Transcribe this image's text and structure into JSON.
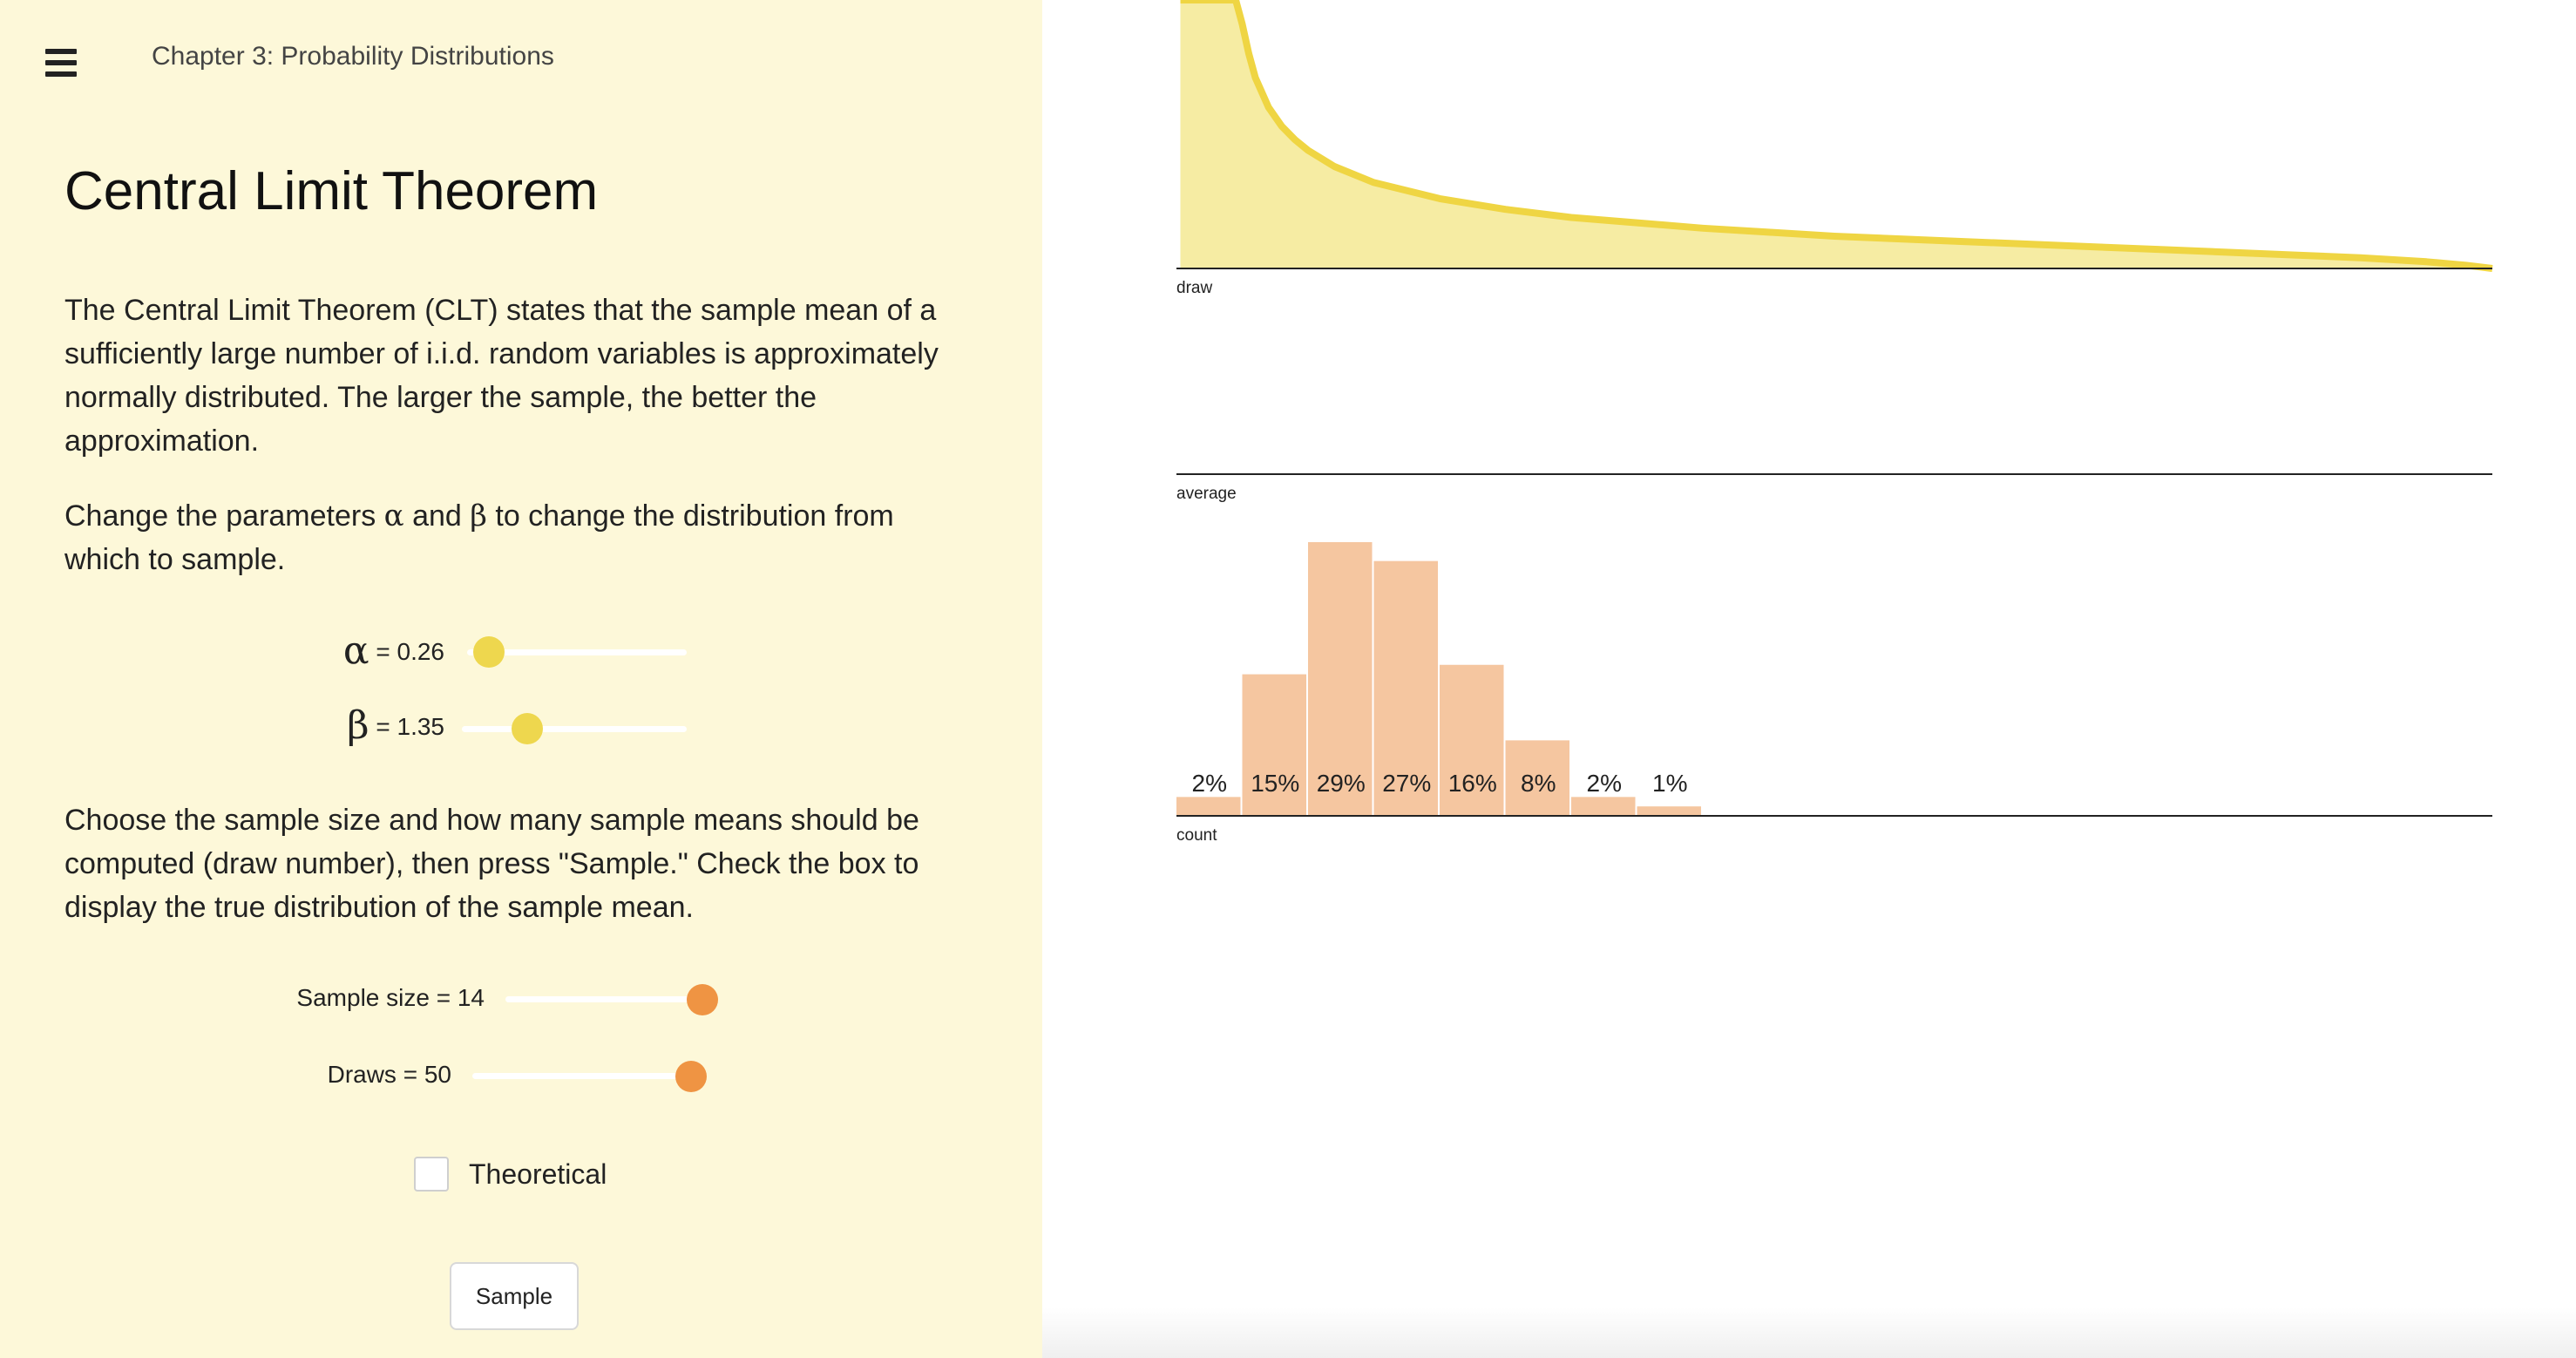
{
  "header": {
    "menu_icon": "hamburger-icon",
    "chapter_title": "Chapter 3: Probability Distributions"
  },
  "main": {
    "title": "Central Limit Theorem",
    "paragraph1": "The Central Limit Theorem (CLT) states that the sample mean of a sufficiently large number of i.i.d. random variables is approximately normally distributed. The larger the sample, the better the approximation.",
    "paragraph2": {
      "part1": "Change the parameters ",
      "alpha_symbol": "α",
      "part2": " and ",
      "beta_symbol": "β",
      "part3": " to change the distribution from which to sample."
    },
    "paragraph3": "Choose the sample size and how many sample means should be computed (draw number), then press \"Sample.\" Check the box to display the true distribution of the sample mean."
  },
  "controls": {
    "alpha": {
      "symbol": "α",
      "value_text": " = 0.26",
      "value": 0.26,
      "position_fraction": 0.1
    },
    "beta": {
      "symbol": "β",
      "value_text": " = 1.35",
      "value": 1.35,
      "position_fraction": 0.29
    },
    "sample_size": {
      "label": "Sample size = 14",
      "value": 14,
      "position_fraction": 0.94
    },
    "draws": {
      "label": "Draws = 50",
      "value": 50,
      "position_fraction": 0.98
    },
    "theoretical": {
      "label": "Theoretical",
      "checked": false
    },
    "sample_button": {
      "label": "Sample"
    }
  },
  "colors": {
    "sidebar_bg": "#fdf8d9",
    "density_fill": "#f6eca3",
    "density_line": "#efd543",
    "histogram_bar": "#f5c6a0",
    "slider_yellow": "#eed74e",
    "slider_orange": "#ef9443"
  },
  "chart_data": [
    {
      "type": "area",
      "description_label": "draw",
      "xlabel": "draw",
      "x_range": [
        0,
        1
      ],
      "x": [
        0.003,
        0.006,
        0.01,
        0.015,
        0.02,
        0.025,
        0.03,
        0.035,
        0.04,
        0.045,
        0.05,
        0.055,
        0.06,
        0.07,
        0.08,
        0.09,
        0.1,
        0.12,
        0.15,
        0.2,
        0.25,
        0.3,
        0.35,
        0.4,
        0.45,
        0.5,
        0.55,
        0.6,
        0.65,
        0.7,
        0.75,
        0.8,
        0.85,
        0.9,
        0.95,
        0.98,
        1.0
      ],
      "values": [
        1.0,
        1.0,
        1.0,
        1.0,
        1.0,
        1.0,
        1.0,
        1.0,
        1.0,
        1.0,
        0.91,
        0.8,
        0.71,
        0.6,
        0.53,
        0.48,
        0.44,
        0.38,
        0.32,
        0.26,
        0.22,
        0.19,
        0.17,
        0.15,
        0.135,
        0.12,
        0.11,
        0.1,
        0.09,
        0.08,
        0.07,
        0.06,
        0.05,
        0.04,
        0.025,
        0.012,
        0.0
      ]
    },
    {
      "type": "scatter",
      "xlabel": "average",
      "x_range": [
        0,
        1
      ],
      "points": []
    },
    {
      "type": "bar",
      "xlabel": "count",
      "x_range": [
        0,
        1
      ],
      "bins": [
        {
          "x0": 0.0,
          "x1": 0.05,
          "percent": 2,
          "label": "2%"
        },
        {
          "x0": 0.05,
          "x1": 0.1,
          "percent": 15,
          "label": "15%"
        },
        {
          "x0": 0.1,
          "x1": 0.15,
          "percent": 29,
          "label": "29%"
        },
        {
          "x0": 0.15,
          "x1": 0.2,
          "percent": 27,
          "label": "27%"
        },
        {
          "x0": 0.2,
          "x1": 0.25,
          "percent": 16,
          "label": "16%"
        },
        {
          "x0": 0.25,
          "x1": 0.3,
          "percent": 8,
          "label": "8%"
        },
        {
          "x0": 0.3,
          "x1": 0.35,
          "percent": 2,
          "label": "2%"
        },
        {
          "x0": 0.35,
          "x1": 0.4,
          "percent": 1,
          "label": "1%"
        }
      ],
      "ylim": [
        0,
        29
      ]
    }
  ]
}
